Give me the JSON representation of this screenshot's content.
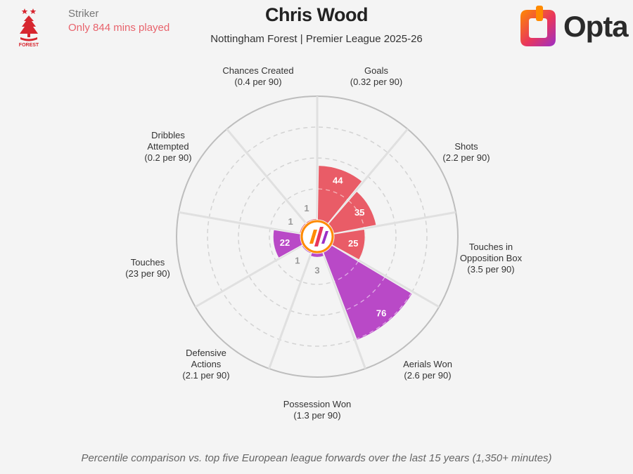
{
  "header": {
    "role": "Striker",
    "minutes_note": "Only 844 mins played",
    "player_name": "Chris Wood",
    "subtitle": "Nottingham Forest | Premier League 2025-26",
    "club_crest_icon": "nottingham-forest-crest-icon",
    "brand_logo_icon": "opta-logo-icon",
    "brand_name": "Opta"
  },
  "footnote": "Percentile comparison vs. top five European league forwards over the last 15 years (1,350+ minutes)",
  "colors": {
    "attacking": "#e8535f",
    "physical": "#b53fc4",
    "low_value_label": "#999999",
    "accent_text": "#e8636c"
  },
  "chart_data": {
    "type": "polar-bar",
    "title": "Chris Wood",
    "scale": [
      0,
      100
    ],
    "categories": [
      {
        "metric": "Goals",
        "sub": "(0.32 per 90)",
        "percentile": 44,
        "group": "attacking"
      },
      {
        "metric": "Shots",
        "sub": "(2.2 per 90)",
        "percentile": 35,
        "group": "attacking"
      },
      {
        "metric": "Touches in Opposition Box",
        "sub": "(3.5 per 90)",
        "percentile": 25,
        "group": "attacking"
      },
      {
        "metric": "Aerials Won",
        "sub": "(2.6 per 90)",
        "percentile": 76,
        "group": "physical"
      },
      {
        "metric": "Possession Won",
        "sub": "(1.3 per 90)",
        "percentile": 3,
        "group": "physical"
      },
      {
        "metric": "Defensive Actions",
        "sub": "(2.1 per 90)",
        "percentile": 1,
        "group": "physical"
      },
      {
        "metric": "Touches",
        "sub": "(23 per 90)",
        "percentile": 22,
        "group": "physical"
      },
      {
        "metric": "Dribbles Attempted",
        "sub": "(0.2 per 90)",
        "percentile": 1,
        "group": "attacking"
      },
      {
        "metric": "Chances Created",
        "sub": "(0.4 per 90)",
        "percentile": 1,
        "group": "attacking"
      }
    ]
  }
}
